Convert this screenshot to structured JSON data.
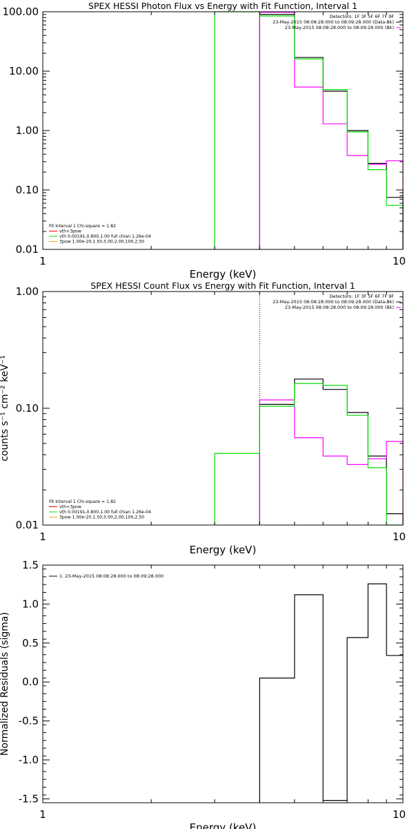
{
  "chart_data": [
    {
      "type": "line",
      "title": "SPEX HESSI Photon Flux vs Energy with Fit Function, Interval 1",
      "xlabel": "Energy (keV)",
      "ylabel": "",
      "x_scale": "log",
      "y_scale": "log",
      "xlim": [
        1,
        10
      ],
      "ylim": [
        0.01,
        100
      ],
      "x_ticks": [
        {
          "v": 1,
          "label": "1"
        },
        {
          "v": 10,
          "label": "10"
        }
      ],
      "y_ticks": [
        {
          "v": 0.01,
          "label": "0.01"
        },
        {
          "v": 0.1,
          "label": "0.10"
        },
        {
          "v": 1,
          "label": "1.00"
        },
        {
          "v": 10,
          "label": "10.00"
        },
        {
          "v": 100,
          "label": "100.00"
        }
      ],
      "dotted_line_x": 4.0,
      "legend_topright": [
        "Detectors: 1F 3F 5F 6F 7F 9F",
        "23-May-2015 08:08:28.000 to 08:09:28.000 (Data-Bk)",
        "23-May-2015 08:08:28.000 to 08:09:28.000 (Bk)"
      ],
      "legend_bottomleft": [
        "Fit Interval 1    Chi-square = 1.82",
        "vth+3pow",
        "vth 0.00191,0.800,1.00  full chian 1.26e-04",
        "3pow 1.00e-20,1.50,5.00,2.00,100,2.50"
      ],
      "series": [
        {
          "color": "#000000",
          "edges": [
            4.0,
            5.0,
            6.0,
            7.0,
            8.0,
            9.0,
            10.0
          ],
          "values": [
            90,
            17,
            4.6,
            1.0,
            0.28,
            0.075
          ]
        },
        {
          "color": "#ff00ff",
          "edges": [
            4.0,
            5.0,
            6.0,
            7.0,
            8.0,
            9.0,
            10.0
          ],
          "values": [
            98,
            5.4,
            1.3,
            0.38,
            0.27,
            0.31
          ]
        },
        {
          "color": "#00dd00",
          "edges": [
            3.0,
            4.0,
            5.0,
            6.0,
            7.0,
            8.0,
            9.0,
            10.0
          ],
          "values": [
            200,
            85,
            16,
            4.9,
            0.95,
            0.22,
            0.055
          ]
        }
      ]
    },
    {
      "type": "line",
      "title": "SPEX HESSI Count Flux vs Energy with Fit Function, Interval 1",
      "xlabel": "Energy (keV)",
      "ylabel": "counts s⁻¹ cm⁻² keV⁻¹",
      "x_scale": "log",
      "y_scale": "log",
      "xlim": [
        1,
        10
      ],
      "ylim": [
        0.01,
        1
      ],
      "x_ticks": [
        {
          "v": 1,
          "label": "1"
        },
        {
          "v": 10,
          "label": "10"
        }
      ],
      "y_ticks": [
        {
          "v": 0.01,
          "label": "0.01"
        },
        {
          "v": 0.1,
          "label": "0.10"
        },
        {
          "v": 1,
          "label": "1.00"
        }
      ],
      "dotted_line_x": 4.0,
      "legend_topright": [
        "Detectors: 1F 3F 5F 6F 7F 9F",
        "23-May-2015 08:08:28.000 to 08:09:28.000 (Data-Bk)",
        "23-May-2015 08:08:28.000 to 08:09:28.000 (Bk)"
      ],
      "legend_bottomleft": [
        "Fit Interval 1    Chi-square = 1.82",
        "vth+3pow",
        "vth 0.00191,0.800,1.00  full chian 1.26e-04",
        "3pow 1.00e-20,1.50,5.00,2.00,100,2.50"
      ],
      "series": [
        {
          "color": "#000000",
          "edges": [
            4.0,
            5.0,
            6.0,
            7.0,
            8.0,
            9.0,
            10.0
          ],
          "values": [
            0.108,
            0.178,
            0.145,
            0.092,
            0.039,
            0.0125
          ]
        },
        {
          "color": "#ff00ff",
          "edges": [
            4.0,
            5.0,
            6.0,
            7.0,
            8.0,
            9.0,
            10.0
          ],
          "values": [
            0.118,
            0.056,
            0.039,
            0.033,
            0.037,
            0.052
          ]
        },
        {
          "color": "#00dd00",
          "edges": [
            3.0,
            4.0,
            5.0,
            6.0,
            7.0,
            8.0,
            9.0,
            10.0
          ],
          "values": [
            0.041,
            0.104,
            0.163,
            0.157,
            0.087,
            0.031,
            0.0095
          ]
        }
      ]
    },
    {
      "type": "line",
      "title": "",
      "xlabel": "Energy (keV)",
      "ylabel": "Normalized Residuals (sigma)",
      "x_scale": "log",
      "y_scale": "linear",
      "xlim": [
        1,
        10
      ],
      "ylim": [
        -1.55,
        1.5
      ],
      "x_ticks": [
        {
          "v": 1,
          "label": "1"
        },
        {
          "v": 10,
          "label": "10"
        }
      ],
      "y_ticks": [
        {
          "v": -1.5,
          "label": "-1.5"
        },
        {
          "v": -1.0,
          "label": "-1.0"
        },
        {
          "v": -0.5,
          "label": "-0.5"
        },
        {
          "v": 0.0,
          "label": "0.0"
        },
        {
          "v": 0.5,
          "label": "0.5"
        },
        {
          "v": 1.0,
          "label": "1.0"
        },
        {
          "v": 1.5,
          "label": "1.5"
        }
      ],
      "legend_topleft": [
        "1. 23-May-2015 08:08:28.000 to 08:09:28.000"
      ],
      "series": [
        {
          "color": "#000000",
          "edges": [
            4.0,
            5.0,
            6.0,
            7.0,
            8.0,
            9.0,
            10.0
          ],
          "values": [
            0.05,
            1.12,
            -1.52,
            0.57,
            1.26,
            0.34
          ]
        }
      ]
    }
  ]
}
